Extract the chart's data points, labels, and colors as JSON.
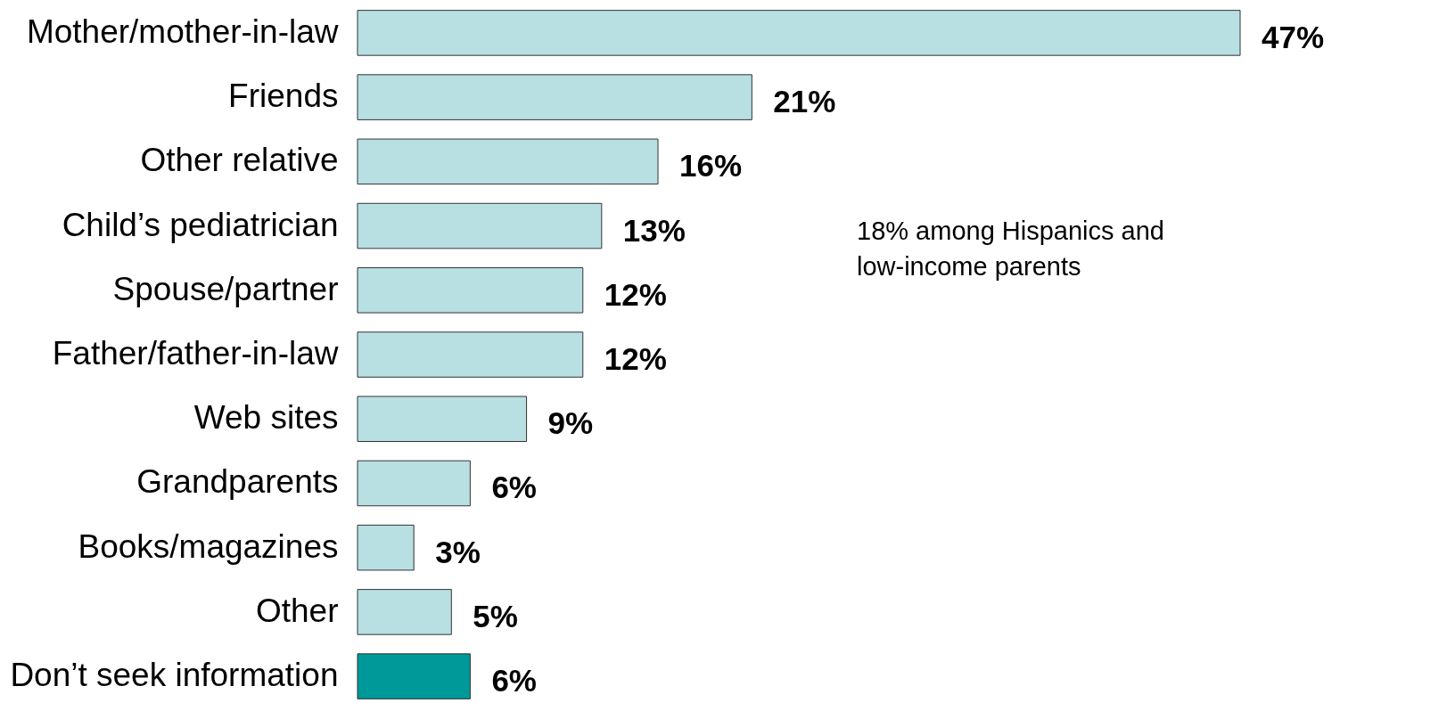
{
  "chart_data": {
    "type": "bar",
    "orientation": "horizontal",
    "categories": [
      "Mother/mother-in-law",
      "Friends",
      "Other relative",
      "Child’s pediatrician",
      "Spouse/partner",
      "Father/father-in-law",
      "Web sites",
      "Grandparents",
      "Books/magazines",
      "Other",
      "Don’t seek information"
    ],
    "values": [
      47,
      21,
      16,
      13,
      12,
      12,
      9,
      6,
      3,
      5,
      6
    ],
    "colors": [
      "#b8e0e3",
      "#b8e0e3",
      "#b8e0e3",
      "#b8e0e3",
      "#b8e0e3",
      "#b8e0e3",
      "#b8e0e3",
      "#b8e0e3",
      "#b8e0e3",
      "#b8e0e3",
      "#009999"
    ],
    "value_labels": [
      "47%",
      "21%",
      "16%",
      "13%",
      "12%",
      "12%",
      "9%",
      "6%",
      "3%",
      "5%",
      "6%"
    ],
    "annotations": [
      "18% among Hispanics and\nlow-income parents"
    ]
  }
}
